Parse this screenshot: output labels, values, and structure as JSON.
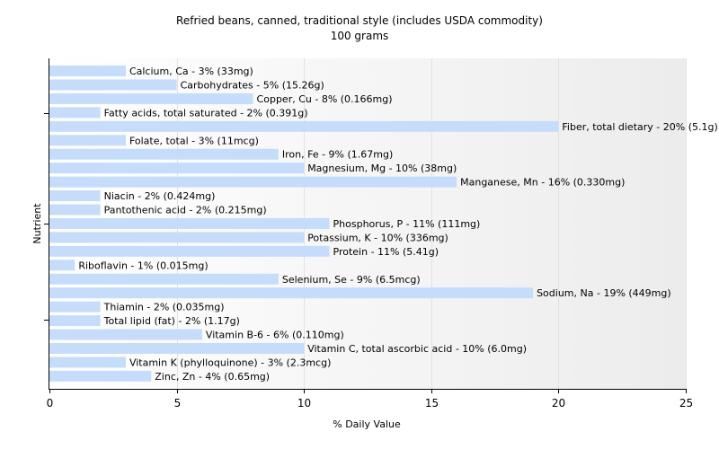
{
  "chart_data": {
    "type": "bar",
    "orientation": "horizontal",
    "title": "Refried beans, canned, traditional style (includes USDA commodity)",
    "subtitle": "100 grams",
    "xlabel": "% Daily Value",
    "ylabel": "Nutrient",
    "xlim": [
      0,
      25
    ],
    "xticks": [
      "0",
      "5",
      "10",
      "15",
      "20",
      "25"
    ],
    "grid": true,
    "colors": {
      "bar": "#c6dcfb",
      "axis": "#000000",
      "plot_bg_end": "#ececec"
    },
    "bars": [
      {
        "label": "Calcium, Ca - 3% (33mg)",
        "value": 3
      },
      {
        "label": "Carbohydrates - 5% (15.26g)",
        "value": 5
      },
      {
        "label": "Copper, Cu - 8% (0.166mg)",
        "value": 8
      },
      {
        "label": "Fatty acids, total saturated - 2% (0.391g)",
        "value": 2
      },
      {
        "label": "Fiber, total dietary - 20% (5.1g)",
        "value": 20
      },
      {
        "label": "Folate, total - 3% (11mcg)",
        "value": 3
      },
      {
        "label": "Iron, Fe - 9% (1.67mg)",
        "value": 9
      },
      {
        "label": "Magnesium, Mg - 10% (38mg)",
        "value": 10
      },
      {
        "label": "Manganese, Mn - 16% (0.330mg)",
        "value": 16
      },
      {
        "label": "Niacin - 2% (0.424mg)",
        "value": 2
      },
      {
        "label": "Pantothenic acid - 2% (0.215mg)",
        "value": 2
      },
      {
        "label": "Phosphorus, P - 11% (111mg)",
        "value": 11
      },
      {
        "label": "Potassium, K - 10% (336mg)",
        "value": 10
      },
      {
        "label": "Protein - 11% (5.41g)",
        "value": 11
      },
      {
        "label": "Riboflavin - 1% (0.015mg)",
        "value": 1
      },
      {
        "label": "Selenium, Se - 9% (6.5mcg)",
        "value": 9
      },
      {
        "label": "Sodium, Na - 19% (449mg)",
        "value": 19
      },
      {
        "label": "Thiamin - 2% (0.035mg)",
        "value": 2
      },
      {
        "label": "Total lipid (fat) - 2% (1.17g)",
        "value": 2
      },
      {
        "label": "Vitamin B-6 - 6% (0.110mg)",
        "value": 6
      },
      {
        "label": "Vitamin C, total ascorbic acid - 10% (6.0mg)",
        "value": 10
      },
      {
        "label": "Vitamin K (phylloquinone) - 3% (2.3mcg)",
        "value": 3
      },
      {
        "label": "Zinc, Zn - 4% (0.65mg)",
        "value": 4
      }
    ]
  }
}
